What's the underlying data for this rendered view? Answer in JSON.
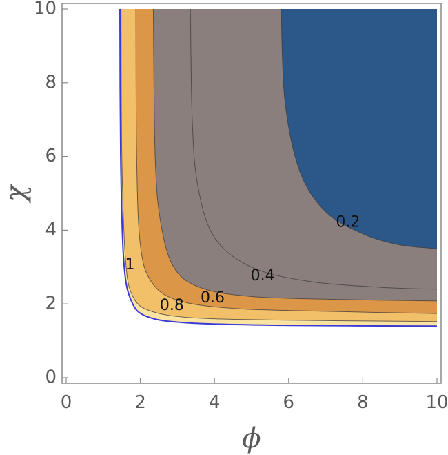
{
  "chart_data": {
    "type": "contour",
    "title": "",
    "xlabel": "ϕ",
    "ylabel": "χ",
    "xlim": [
      0,
      10
    ],
    "ylim": [
      0,
      10
    ],
    "xticks": [
      "0",
      "2",
      "4",
      "6",
      "8",
      "10"
    ],
    "yticks": [
      "0",
      "2",
      "4",
      "6",
      "8",
      "10"
    ],
    "legend": "none",
    "grid": false,
    "region": {
      "x_min": 1.45,
      "x_max": 10,
      "y_min": 1.4,
      "y_max": 10
    },
    "boundary_color": "#3a3ad6",
    "contours": [
      {
        "label": "1",
        "curve": [
          [
            1.48,
            10
          ],
          [
            1.5,
            6
          ],
          [
            1.6,
            3.2
          ],
          [
            1.8,
            2.2
          ],
          [
            2.3,
            1.8
          ],
          [
            3.5,
            1.62
          ],
          [
            6,
            1.56
          ],
          [
            10,
            1.52
          ]
        ]
      },
      {
        "label": "0.8",
        "curve": [
          [
            1.88,
            10
          ],
          [
            1.9,
            6
          ],
          [
            2.0,
            3.6
          ],
          [
            2.3,
            2.6
          ],
          [
            3.0,
            2.1
          ],
          [
            4.5,
            1.88
          ],
          [
            7,
            1.8
          ],
          [
            10,
            1.74
          ]
        ]
      },
      {
        "label": "0.6",
        "curve": [
          [
            2.35,
            10
          ],
          [
            2.4,
            6
          ],
          [
            2.55,
            4.2
          ],
          [
            2.9,
            3.0
          ],
          [
            3.6,
            2.45
          ],
          [
            5,
            2.2
          ],
          [
            7.5,
            2.12
          ],
          [
            10,
            2.08
          ]
        ]
      },
      {
        "label": "0.4",
        "curve": [
          [
            3.35,
            10
          ],
          [
            3.4,
            7
          ],
          [
            3.55,
            5.2
          ],
          [
            4.0,
            3.8
          ],
          [
            5.0,
            3.0
          ],
          [
            6.5,
            2.62
          ],
          [
            8.5,
            2.45
          ],
          [
            10,
            2.4
          ]
        ]
      },
      {
        "label": "0.2",
        "curve": [
          [
            5.8,
            10
          ],
          [
            5.9,
            7.5
          ],
          [
            6.3,
            5.6
          ],
          [
            7.0,
            4.5
          ],
          [
            8.0,
            3.9
          ],
          [
            9.0,
            3.6
          ],
          [
            10,
            3.5
          ]
        ]
      }
    ],
    "bands": [
      {
        "between": [
          "boundary",
          "1"
        ],
        "color": "#fbe3a2"
      },
      {
        "between": [
          "1",
          "0.8"
        ],
        "color": "#f3c06a"
      },
      {
        "between": [
          "0.8",
          "0.6"
        ],
        "color": "#dc9648"
      },
      {
        "between": [
          "0.6",
          "0.4"
        ],
        "color": "#8b7f7e"
      },
      {
        "between": [
          "0.4",
          "0.2"
        ],
        "color": "#8b7f7e"
      },
      {
        "between": [
          "0.2",
          "top-right"
        ],
        "color": "#2b5789"
      }
    ],
    "contour_labels": [
      {
        "text": "1",
        "x": 1.72,
        "y": 3.05
      },
      {
        "text": "0.8",
        "x": 2.85,
        "y": 1.95
      },
      {
        "text": "0.6",
        "x": 3.95,
        "y": 2.15
      },
      {
        "text": "0.4",
        "x": 5.3,
        "y": 2.75
      },
      {
        "text": "0.2",
        "x": 7.6,
        "y": 4.2
      }
    ]
  }
}
